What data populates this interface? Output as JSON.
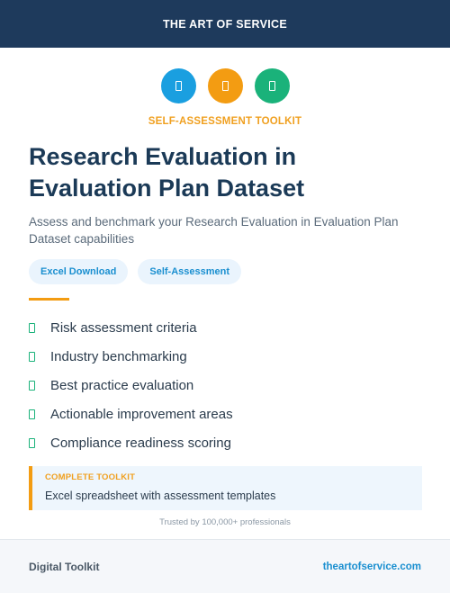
{
  "header": {
    "brand": "THE ART OF SERVICE",
    "color": "#1e3a5c"
  },
  "icons": [
    {
      "name": "document-icon",
      "color": "#1a9fe0"
    },
    {
      "name": "document-icon",
      "color": "#f39c12"
    },
    {
      "name": "document-icon",
      "color": "#1ab27a"
    }
  ],
  "kicker": "SELF-ASSESSMENT TOOLKIT",
  "title": "Research Evaluation in Evaluation Plan Dataset",
  "subtitle": "Assess and benchmark your Research Evaluation in Evaluation Plan Dataset capabilities",
  "tags": [
    "Excel Download",
    "Self-Assessment"
  ],
  "features": [
    "Risk assessment criteria",
    "Industry benchmarking",
    "Best practice evaluation",
    "Actionable improvement areas",
    "Compliance readiness scoring"
  ],
  "callout": {
    "heading": "COMPLETE TOOLKIT",
    "body": "Excel spreadsheet with assessment templates"
  },
  "trusted": "Trusted by 100,000+ professionals",
  "footer": {
    "left": "Digital Toolkit",
    "right": "theartofservice.com"
  },
  "colors": {
    "accent": "#f39c12",
    "link": "#1a8fd0",
    "check": "#1ab27a"
  }
}
